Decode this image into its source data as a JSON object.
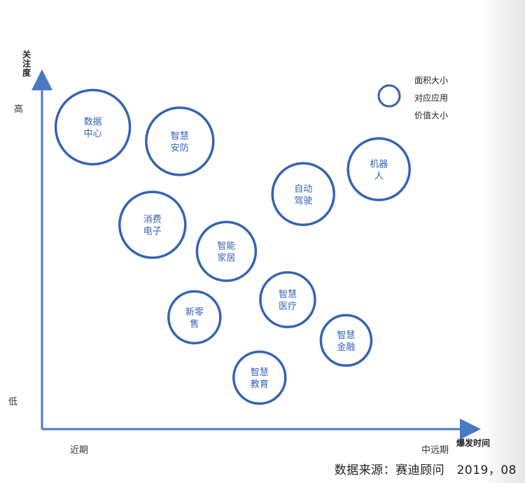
{
  "chart_data": {
    "type": "bubble",
    "x_axis": {
      "label": "爆发时间",
      "start_label": "近期",
      "end_label": "中远期"
    },
    "y_axis": {
      "label": "关注度",
      "high_label": "高",
      "low_label": "低"
    },
    "legend": {
      "lines": [
        "面积大小",
        "对应应用",
        "价值大小"
      ],
      "placement": "top-right"
    },
    "bubbles": [
      {
        "label": [
          "数据",
          "中心"
        ],
        "x": 0.121,
        "y": 0.875,
        "size": 53
      },
      {
        "label": [
          "智慧",
          "安防"
        ],
        "x": 0.328,
        "y": 0.834,
        "size": 48
      },
      {
        "label": [
          "机器",
          "人"
        ],
        "x": 0.802,
        "y": 0.753,
        "size": 44
      },
      {
        "label": [
          "自动",
          "驾驶"
        ],
        "x": 0.622,
        "y": 0.681,
        "size": 44
      },
      {
        "label": [
          "消费",
          "电子"
        ],
        "x": 0.263,
        "y": 0.592,
        "size": 47
      },
      {
        "label": [
          "智能",
          "家居"
        ],
        "x": 0.439,
        "y": 0.515,
        "size": 42
      },
      {
        "label": [
          "智慧",
          "医疗"
        ],
        "x": 0.585,
        "y": 0.375,
        "size": 39
      },
      {
        "label": [
          "新零",
          "售"
        ],
        "x": 0.363,
        "y": 0.324,
        "size": 37
      },
      {
        "label": [
          "智慧",
          "金融"
        ],
        "x": 0.724,
        "y": 0.257,
        "size": 36
      },
      {
        "label": [
          "智慧",
          "教育"
        ],
        "x": 0.518,
        "y": 0.149,
        "size": 37
      }
    ],
    "color": "#3563b3"
  },
  "source": "数据来源：赛迪顾问　2019，08"
}
